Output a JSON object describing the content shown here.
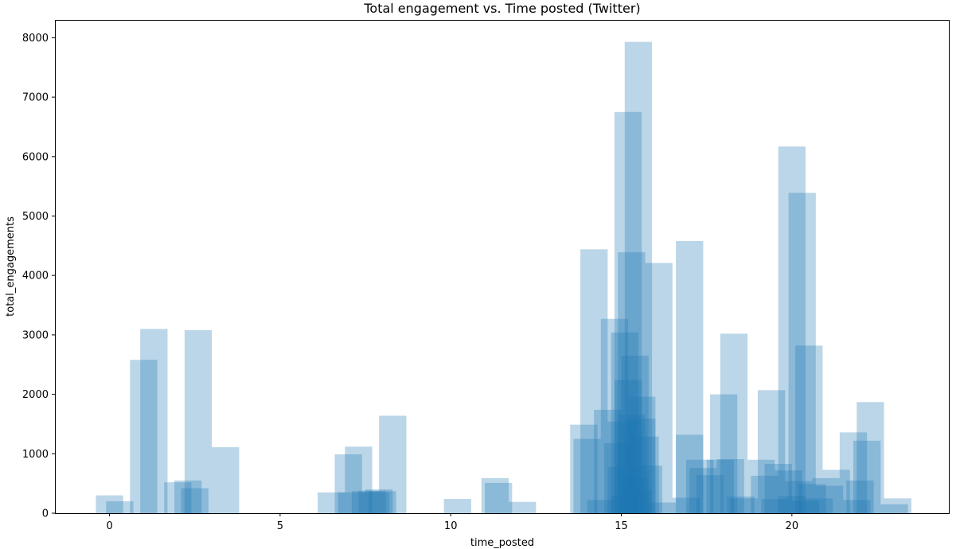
{
  "chart_data": {
    "type": "bar",
    "title": "Total engagement vs. Time posted (Twitter)",
    "xlabel": "time_posted",
    "ylabel": "total_engagements",
    "xlim": [
      -1.6,
      24.6
    ],
    "ylim": [
      0,
      8300
    ],
    "x_ticks": [
      0,
      5,
      10,
      15,
      20
    ],
    "y_ticks": [
      0,
      1000,
      2000,
      3000,
      4000,
      5000,
      6000,
      7000,
      8000
    ],
    "bar_width": 0.8,
    "bar_color": "#1f77b4",
    "bar_alpha": 0.3,
    "grid": false,
    "bars": [
      {
        "x": 0.0,
        "y": 300
      },
      {
        "x": 0.3,
        "y": 200
      },
      {
        "x": 1.0,
        "y": 2580
      },
      {
        "x": 1.3,
        "y": 3100
      },
      {
        "x": 2.0,
        "y": 520
      },
      {
        "x": 2.3,
        "y": 550
      },
      {
        "x": 2.5,
        "y": 420
      },
      {
        "x": 2.6,
        "y": 3080
      },
      {
        "x": 3.4,
        "y": 1110
      },
      {
        "x": 6.5,
        "y": 350
      },
      {
        "x": 7.0,
        "y": 990
      },
      {
        "x": 7.1,
        "y": 350
      },
      {
        "x": 7.3,
        "y": 1120
      },
      {
        "x": 7.5,
        "y": 370
      },
      {
        "x": 7.7,
        "y": 380
      },
      {
        "x": 7.8,
        "y": 350
      },
      {
        "x": 7.9,
        "y": 400
      },
      {
        "x": 8.0,
        "y": 370
      },
      {
        "x": 8.3,
        "y": 1640
      },
      {
        "x": 10.2,
        "y": 240
      },
      {
        "x": 11.3,
        "y": 590
      },
      {
        "x": 11.4,
        "y": 510
      },
      {
        "x": 12.1,
        "y": 190
      },
      {
        "x": 13.9,
        "y": 1490
      },
      {
        "x": 14.0,
        "y": 1250
      },
      {
        "x": 14.2,
        "y": 4440
      },
      {
        "x": 14.4,
        "y": 220
      },
      {
        "x": 14.6,
        "y": 1740
      },
      {
        "x": 14.8,
        "y": 3270
      },
      {
        "x": 14.9,
        "y": 1180
      },
      {
        "x": 15.0,
        "y": 1540
      },
      {
        "x": 15.1,
        "y": 3040
      },
      {
        "x": 15.2,
        "y": 6750
      },
      {
        "x": 15.3,
        "y": 4390
      },
      {
        "x": 15.4,
        "y": 2650
      },
      {
        "x": 15.5,
        "y": 7930
      },
      {
        "x": 15.6,
        "y": 1960
      },
      {
        "x": 15.7,
        "y": 1290
      },
      {
        "x": 15.8,
        "y": 800
      },
      {
        "x": 15.2,
        "y": 2240
      },
      {
        "x": 15.3,
        "y": 1660
      },
      {
        "x": 15.4,
        "y": 600
      },
      {
        "x": 15.1,
        "y": 300
      },
      {
        "x": 15.6,
        "y": 1590
      },
      {
        "x": 15.0,
        "y": 780
      },
      {
        "x": 15.5,
        "y": 400
      },
      {
        "x": 16.1,
        "y": 4210
      },
      {
        "x": 16.2,
        "y": 180
      },
      {
        "x": 16.9,
        "y": 260
      },
      {
        "x": 17.0,
        "y": 1320
      },
      {
        "x": 17.0,
        "y": 4580
      },
      {
        "x": 17.3,
        "y": 900
      },
      {
        "x": 17.4,
        "y": 760
      },
      {
        "x": 17.6,
        "y": 640
      },
      {
        "x": 17.9,
        "y": 900
      },
      {
        "x": 18.0,
        "y": 2000
      },
      {
        "x": 18.2,
        "y": 910
      },
      {
        "x": 18.3,
        "y": 3020
      },
      {
        "x": 18.5,
        "y": 280
      },
      {
        "x": 18.6,
        "y": 250
      },
      {
        "x": 19.1,
        "y": 900
      },
      {
        "x": 19.2,
        "y": 630
      },
      {
        "x": 19.4,
        "y": 2070
      },
      {
        "x": 19.5,
        "y": 240
      },
      {
        "x": 19.6,
        "y": 830
      },
      {
        "x": 19.9,
        "y": 720
      },
      {
        "x": 20.0,
        "y": 6170
      },
      {
        "x": 20.0,
        "y": 290
      },
      {
        "x": 20.3,
        "y": 5390
      },
      {
        "x": 20.2,
        "y": 540
      },
      {
        "x": 20.4,
        "y": 210
      },
      {
        "x": 20.5,
        "y": 2820
      },
      {
        "x": 20.6,
        "y": 490
      },
      {
        "x": 20.8,
        "y": 250
      },
      {
        "x": 21.0,
        "y": 590
      },
      {
        "x": 21.3,
        "y": 730
      },
      {
        "x": 21.1,
        "y": 460
      },
      {
        "x": 21.8,
        "y": 1360
      },
      {
        "x": 22.0,
        "y": 550
      },
      {
        "x": 22.2,
        "y": 1220
      },
      {
        "x": 22.3,
        "y": 1870
      },
      {
        "x": 21.9,
        "y": 220
      },
      {
        "x": 23.0,
        "y": 150
      },
      {
        "x": 23.1,
        "y": 250
      }
    ]
  }
}
